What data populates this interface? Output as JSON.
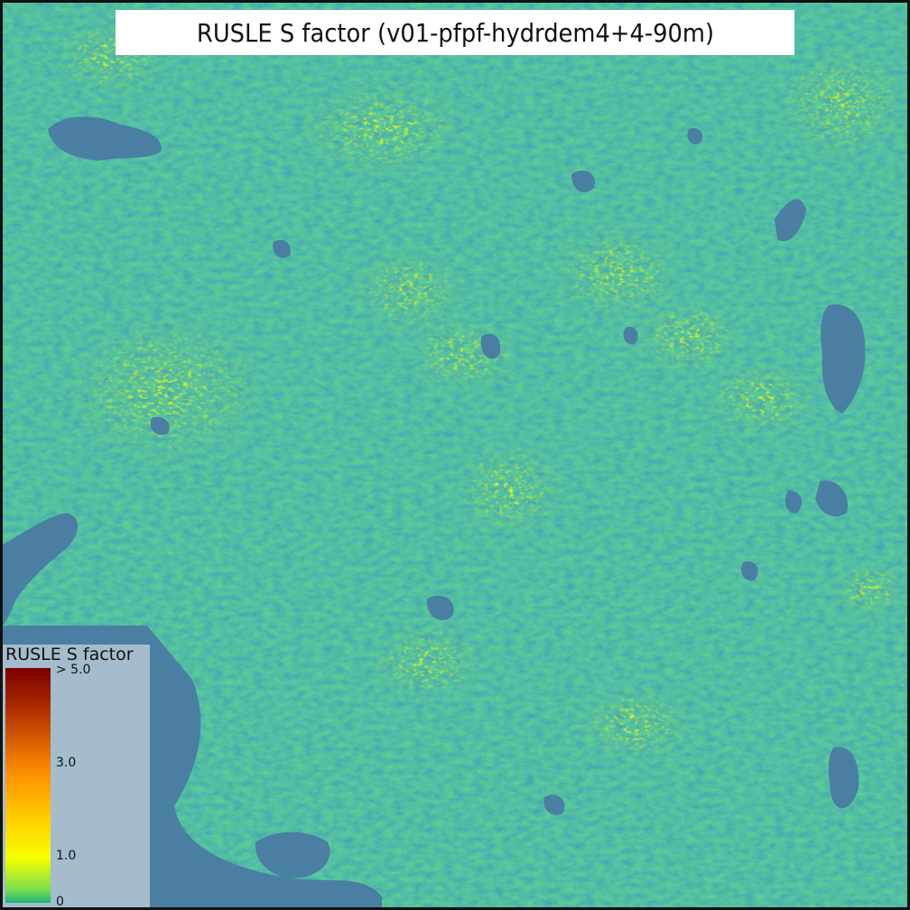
{
  "map": {
    "title": "RUSLE S factor (v01-pfpf-hydrdem4+4-90m)",
    "colors": {
      "water": "#4a7fa3",
      "terrain_low": "#2a9a8a",
      "terrain_mid": "#3fb57a",
      "terrain_high": "#a5e040",
      "hotspot": "#f5ff00",
      "peak": "#e03000"
    }
  },
  "legend": {
    "title": "RUSLE S factor",
    "labels": {
      "max": "> 5.0",
      "mid_high": "3.0",
      "mid_low": "1.0",
      "min": "0"
    }
  }
}
